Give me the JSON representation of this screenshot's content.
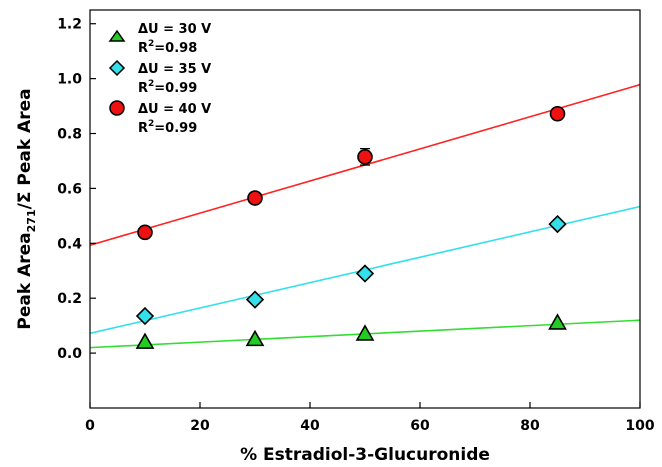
{
  "chart_data": {
    "type": "scatter",
    "xlabel": "% Estradiol-3-Glucuronide",
    "ylabel": {
      "main": "Peak Area",
      "subscript": "271",
      "rest": "/Σ Peak Area"
    },
    "xlim": [
      0,
      100
    ],
    "ylim": [
      -0.2,
      1.25
    ],
    "x_ticks": [
      0,
      20,
      40,
      60,
      80,
      100
    ],
    "y_ticks": [
      0.0,
      0.2,
      0.4,
      0.6,
      0.8,
      1.0,
      1.2
    ],
    "x_tick_labels": [
      "0",
      "20",
      "40",
      "60",
      "80",
      "100"
    ],
    "y_tick_labels": [
      "0.0",
      "0.2",
      "0.4",
      "0.6",
      "0.8",
      "1.0",
      "1.2"
    ],
    "series": [
      {
        "name": "ΔU = 30 V",
        "r2_label": "R",
        "r2_sup": "2",
        "r2_value": "=0.98",
        "marker": "triangle",
        "color": "#22cc22",
        "line_color": "#33dd33",
        "x": [
          10,
          30,
          50,
          85
        ],
        "y": [
          0.04,
          0.05,
          0.07,
          0.11
        ],
        "fit": {
          "intercept": 0.02,
          "slope": 0.001
        }
      },
      {
        "name": "ΔU = 35 V",
        "r2_label": "R",
        "r2_sup": "2",
        "r2_value": "=0.99",
        "marker": "diamond",
        "color": "#33e0ea",
        "line_color": "#33e0ea",
        "x": [
          10,
          30,
          50,
          85
        ],
        "y": [
          0.135,
          0.195,
          0.29,
          0.47
        ],
        "fit": {
          "intercept": 0.072,
          "slope": 0.00462
        }
      },
      {
        "name": "ΔU = 40 V",
        "r2_label": "R",
        "r2_sup": "2",
        "r2_value": "=0.99",
        "marker": "circle",
        "color": "#ee1111",
        "line_color": "#ff2222",
        "x": [
          10,
          30,
          50,
          85
        ],
        "y": [
          0.44,
          0.565,
          0.715,
          0.872
        ],
        "yerr": [
          0,
          0,
          0.03,
          0
        ],
        "fit": {
          "intercept": 0.393,
          "slope": 0.00585
        }
      }
    ],
    "legend_position": "top-left",
    "grid": false
  }
}
